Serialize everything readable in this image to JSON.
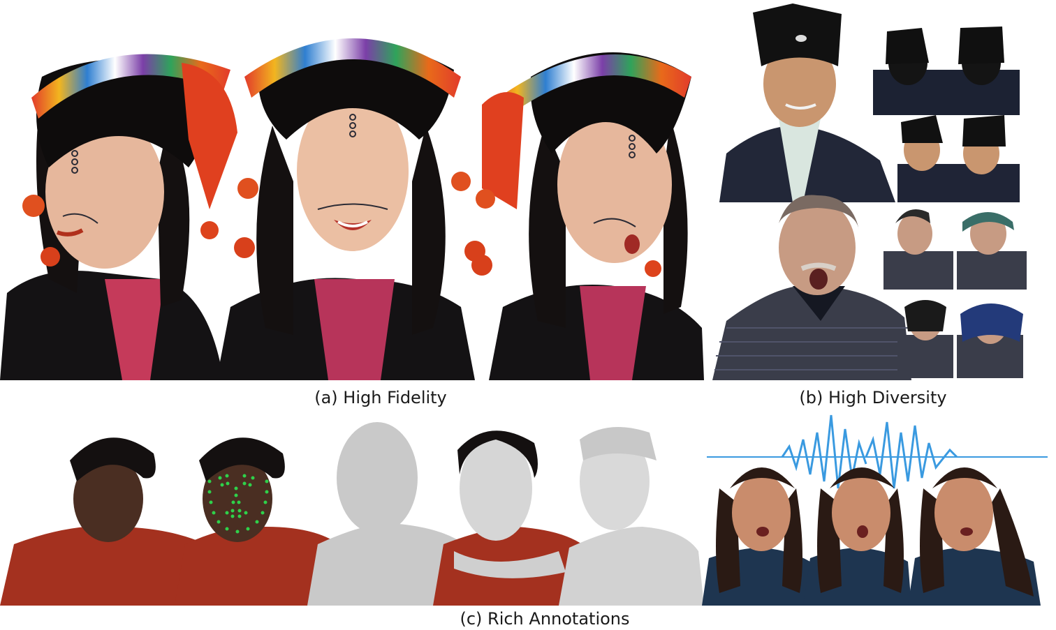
{
  "captions": {
    "a": "(a) High Fidelity",
    "b": "(b) High Diversity",
    "c": "(c) Rich Annotations"
  },
  "colors": {
    "skin_light": "#e6b79c",
    "skin_dark": "#4a2e22",
    "hair": "#141010",
    "hoodie_red": "#a4311f",
    "hanfu_dark": "#222738",
    "waveform_blue": "#3a9ae0",
    "landmark_green": "#2fd14a",
    "mesh_gray": "#cfcfcf",
    "silhouette_gray": "#c9c9c9",
    "sweater_navy": "#1e3550",
    "hat_stripes": [
      "#e23b2b",
      "#f2b51f",
      "#2f7fd1",
      "#ffffff",
      "#7b3fa8",
      "#2fa35b",
      "#e86a1a"
    ]
  }
}
